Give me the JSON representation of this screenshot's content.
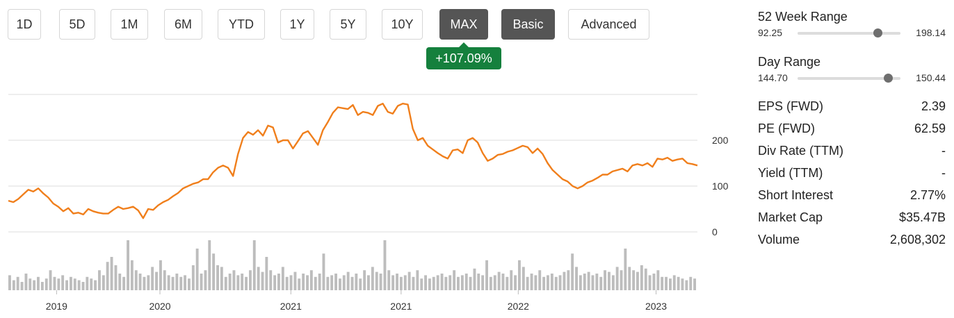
{
  "range_buttons": [
    {
      "label": "1D",
      "active": false
    },
    {
      "label": "5D",
      "active": false
    },
    {
      "label": "1M",
      "active": false
    },
    {
      "label": "6M",
      "active": false
    },
    {
      "label": "YTD",
      "active": false
    },
    {
      "label": "1Y",
      "active": false
    },
    {
      "label": "5Y",
      "active": false
    },
    {
      "label": "10Y",
      "active": false
    },
    {
      "label": "MAX",
      "active": true
    }
  ],
  "mode_buttons": [
    {
      "label": "Basic",
      "active": true
    },
    {
      "label": "Advanced",
      "active": false
    }
  ],
  "change_badge": "+107.09%",
  "colors": {
    "line": "#f07f1c",
    "badge": "#15803d",
    "grid": "#dddddd",
    "volume": "#bdbdbd",
    "active_button": "#555555"
  },
  "stats": {
    "week52": {
      "title": "52 Week Range",
      "low": "92.25",
      "high": "198.14",
      "position": 0.78
    },
    "day": {
      "title": "Day Range",
      "low": "144.70",
      "high": "150.44",
      "position": 0.88
    },
    "rows": [
      {
        "label": "EPS (FWD)",
        "value": "2.39"
      },
      {
        "label": "PE (FWD)",
        "value": "62.59"
      },
      {
        "label": "Div Rate (TTM)",
        "value": "-"
      },
      {
        "label": "Yield (TTM)",
        "value": "-"
      },
      {
        "label": "Short Interest",
        "value": "2.77%"
      },
      {
        "label": "Market Cap",
        "value": "$35.47B"
      },
      {
        "label": "Volume",
        "value": "2,608,302"
      }
    ]
  },
  "chart_data": {
    "type": "line",
    "ylim": [
      0,
      300
    ],
    "y_ticks": [
      0,
      100,
      200
    ],
    "grid": true,
    "x_tick_labels": [
      "2019",
      "2020",
      "2021",
      "2021",
      "2022",
      "2023"
    ],
    "x_tick_positions": [
      0.07,
      0.22,
      0.41,
      0.57,
      0.74,
      0.94
    ],
    "series": [
      {
        "values": [
          68,
          65,
          72,
          82,
          92,
          88,
          95,
          84,
          75,
          62,
          55,
          45,
          52,
          40,
          42,
          38,
          50,
          45,
          42,
          40,
          40,
          48,
          55,
          50,
          52,
          55,
          47,
          30,
          50,
          48,
          58,
          65,
          70,
          78,
          85,
          95,
          100,
          105,
          108,
          115,
          115,
          130,
          140,
          145,
          140,
          122,
          170,
          205,
          218,
          212,
          222,
          210,
          232,
          228,
          195,
          200,
          200,
          182,
          198,
          215,
          220,
          205,
          190,
          222,
          240,
          260,
          272,
          270,
          268,
          277,
          255,
          262,
          260,
          255,
          275,
          280,
          262,
          258,
          275,
          280,
          278,
          225,
          200,
          205,
          188,
          180,
          172,
          165,
          160,
          178,
          180,
          172,
          200,
          205,
          195,
          172,
          155,
          160,
          168,
          170,
          175,
          178,
          183,
          188,
          185,
          172,
          182,
          170,
          150,
          135,
          125,
          115,
          110,
          100,
          95,
          100,
          108,
          112,
          118,
          125,
          125,
          132,
          135,
          138,
          132,
          145,
          148,
          145,
          150,
          142,
          160,
          158,
          162,
          155,
          158,
          160,
          150,
          148,
          145
        ],
        "color": "#f07f1c"
      }
    ],
    "volume": [
      9,
      6,
      8,
      5,
      10,
      7,
      6,
      8,
      5,
      7,
      12,
      8,
      7,
      9,
      6,
      8,
      7,
      6,
      5,
      8,
      7,
      6,
      12,
      9,
      17,
      20,
      15,
      10,
      8,
      30,
      18,
      12,
      10,
      8,
      9,
      14,
      11,
      18,
      12,
      9,
      8,
      10,
      8,
      9,
      7,
      15,
      25,
      10,
      12,
      30,
      22,
      15,
      14,
      8,
      10,
      12,
      9,
      10,
      8,
      12,
      30,
      14,
      11,
      20,
      12,
      9,
      10,
      14,
      8,
      9,
      11,
      7,
      10,
      9,
      12,
      8,
      10,
      22,
      8,
      9,
      10,
      7,
      9,
      11,
      8,
      10,
      7,
      12,
      9,
      14,
      11,
      10,
      30,
      12,
      9,
      10,
      8,
      9,
      11,
      8,
      12,
      7,
      9,
      7,
      8,
      9,
      10,
      8,
      9,
      12,
      8,
      9,
      10,
      8,
      13,
      10,
      9,
      18,
      8,
      9,
      11,
      10,
      8,
      12,
      9,
      18,
      14,
      8,
      10,
      9,
      12,
      8,
      9,
      10,
      8,
      9,
      11,
      12,
      22,
      14,
      9,
      10,
      11,
      9,
      10,
      8,
      12,
      11,
      9,
      14,
      12,
      25,
      14,
      12,
      11,
      15,
      13,
      9,
      10,
      12,
      8,
      8,
      7,
      9,
      8,
      7,
      6,
      8,
      7
    ]
  }
}
